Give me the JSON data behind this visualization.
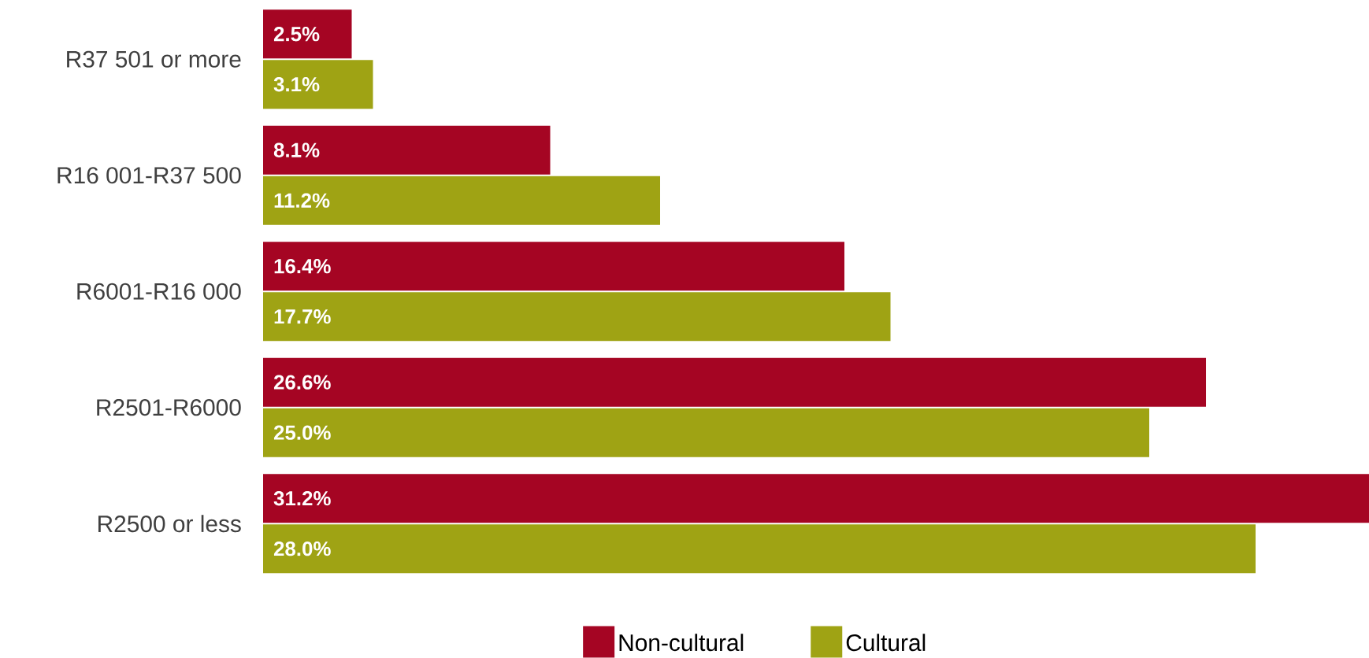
{
  "chart_data": {
    "type": "bar",
    "orientation": "horizontal",
    "categories": [
      "R37 501 or more",
      "R16 001-R37 500",
      "R6001-R16 000",
      "R2501-R6000",
      "R2500 or less"
    ],
    "series": [
      {
        "name": "Non-cultural",
        "color": "#a50523",
        "values": [
          2.5,
          8.1,
          16.4,
          26.6,
          31.2
        ],
        "value_labels": [
          "2.5%",
          "8.1%",
          "16.4%",
          "26.6%",
          "31.2%"
        ]
      },
      {
        "name": "Cultural",
        "color": "#9fa314",
        "values": [
          3.1,
          11.2,
          17.7,
          25.0,
          28.0
        ],
        "value_labels": [
          "3.1%",
          "11.2%",
          "17.7%",
          "25.0%",
          "28.0%"
        ]
      }
    ],
    "xlim": [
      0,
      31.2
    ],
    "legend": "bottom"
  }
}
